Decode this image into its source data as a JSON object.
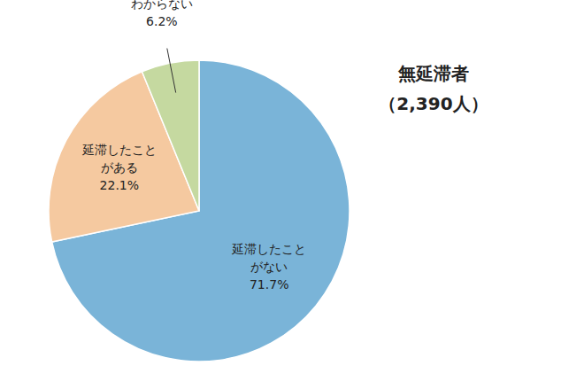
{
  "chart_data": {
    "type": "pie",
    "title": "無延滞者",
    "subtitle": "（2,390人）",
    "categories": [
      "延滞したこと\nがない",
      "延滞したこと\nがある",
      "わからない"
    ],
    "values": [
      71.7,
      22.1,
      6.2
    ],
    "value_labels": [
      "71.7%",
      "22.1%",
      "6.2%"
    ],
    "colors": [
      "#7ab4d8",
      "#f5c9a0",
      "#c5d9a0"
    ],
    "data_labels": true
  }
}
